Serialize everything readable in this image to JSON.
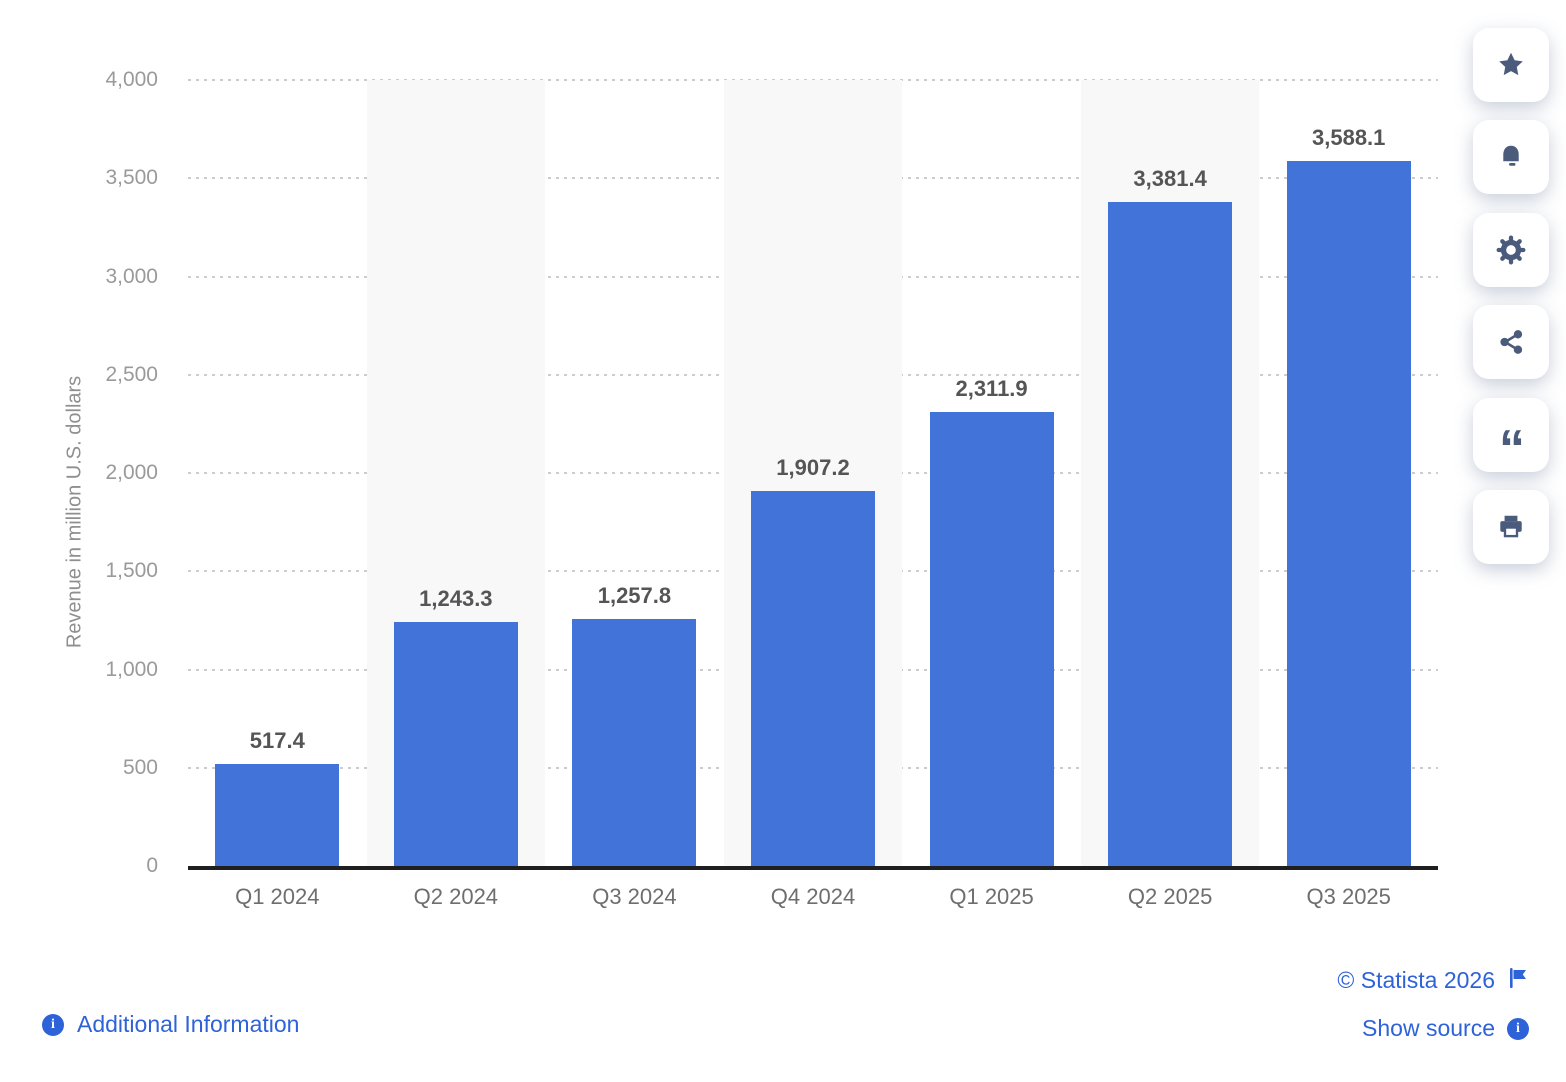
{
  "chart_data": {
    "type": "bar",
    "categories": [
      "Q1 2024",
      "Q2 2024",
      "Q3 2024",
      "Q4 2024",
      "Q1 2025",
      "Q2 2025",
      "Q3 2025"
    ],
    "values": [
      517.4,
      1243.3,
      1257.8,
      1907.2,
      2311.9,
      3381.4,
      3588.1
    ],
    "value_labels": [
      "517.4",
      "1,243.3",
      "1,257.8",
      "1,907.2",
      "2,311.9",
      "3,381.4",
      "3,588.1"
    ],
    "title": "",
    "xlabel": "",
    "ylabel": "Revenue in million U.S. dollars",
    "ylim": [
      0,
      4000
    ],
    "yticks": [
      0,
      500,
      1000,
      1500,
      2000,
      2500,
      3000,
      3500,
      4000
    ],
    "ytick_labels": [
      "0",
      "500",
      "1,000",
      "1,500",
      "2,000",
      "2,500",
      "3,000",
      "3,500",
      "4,000"
    ],
    "grid": "dotted-horizontal",
    "legend": "none",
    "striped_column_indexes": [
      1,
      3,
      5
    ]
  },
  "toolbar": {
    "buttons": [
      {
        "icon": "star-icon"
      },
      {
        "icon": "bell-icon"
      },
      {
        "icon": "gear-icon"
      },
      {
        "icon": "share-icon"
      },
      {
        "icon": "quote-icon"
      },
      {
        "icon": "print-icon"
      }
    ]
  },
  "footer": {
    "additional_information": "Additional Information",
    "copyright": "© Statista 2026",
    "show_source": "Show source",
    "info_glyph": "i"
  },
  "colors": {
    "bar": "#4173d8",
    "link": "#2e62d9",
    "icon": "#4a5b7c",
    "stripe": "#f8f8f8",
    "grid": "#cdcdcd",
    "axis": "#1f1f1f"
  }
}
